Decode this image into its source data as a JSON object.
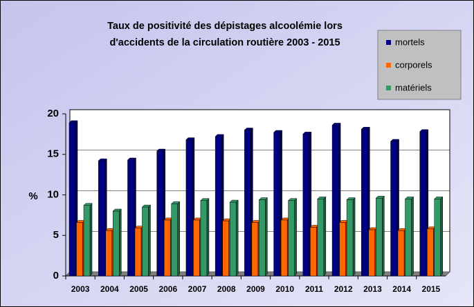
{
  "chart_data": {
    "type": "bar",
    "title": [
      "Taux de positivité des dépistages alcoolémie lors",
      "d'accidents de la circulation routière 2003 - 2015"
    ],
    "ylabel": "%",
    "categories": [
      "2003",
      "2004",
      "2005",
      "2006",
      "2007",
      "2008",
      "2009",
      "2010",
      "2011",
      "2012",
      "2013",
      "2014",
      "2015"
    ],
    "series": [
      {
        "name": "mortels",
        "color": "#000080",
        "values": [
          18.9,
          14.2,
          14.3,
          15.4,
          16.8,
          17.2,
          18.0,
          17.7,
          17.5,
          18.6,
          18.1,
          16.6,
          17.8
        ]
      },
      {
        "name": "corporels",
        "color": "#ff6600",
        "values": [
          6.6,
          5.6,
          5.9,
          6.9,
          6.9,
          6.8,
          6.6,
          6.9,
          6.0,
          6.6,
          5.7,
          5.6,
          5.8
        ]
      },
      {
        "name": "matériels",
        "color": "#339966",
        "values": [
          8.7,
          8.0,
          8.5,
          8.9,
          9.3,
          9.1,
          9.4,
          9.3,
          9.5,
          9.4,
          9.6,
          9.5,
          9.5
        ]
      }
    ],
    "ylim": [
      0,
      20
    ],
    "yticks": [
      0,
      5,
      10,
      15,
      20
    ],
    "grid": true,
    "legend": "top-right"
  }
}
